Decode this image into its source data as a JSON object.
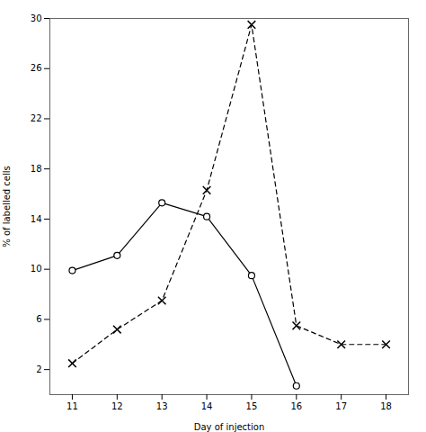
{
  "chart_data": {
    "type": "line",
    "xlabel": "Day of injection",
    "ylabel": "% of labelled cells",
    "xlim": [
      10.5,
      18.5
    ],
    "ylim": [
      0,
      30
    ],
    "xticks": [
      11,
      12,
      13,
      14,
      15,
      16,
      17,
      18
    ],
    "yticks": [
      2,
      6,
      10,
      14,
      18,
      22,
      26,
      30
    ],
    "series": [
      {
        "x": [
          11,
          12,
          13,
          14,
          15,
          16
        ],
        "values": [
          9.9,
          11.1,
          15.3,
          14.2,
          9.5,
          0.7
        ],
        "color": "#000000",
        "marker": "circle",
        "line_style": "solid"
      },
      {
        "x": [
          11,
          12,
          13,
          14,
          15,
          16,
          17,
          18
        ],
        "values": [
          2.5,
          5.2,
          7.5,
          16.3,
          29.5,
          5.5,
          4.0,
          4.0
        ],
        "color": "#000000",
        "marker": "x",
        "line_style": "dashed"
      }
    ]
  }
}
